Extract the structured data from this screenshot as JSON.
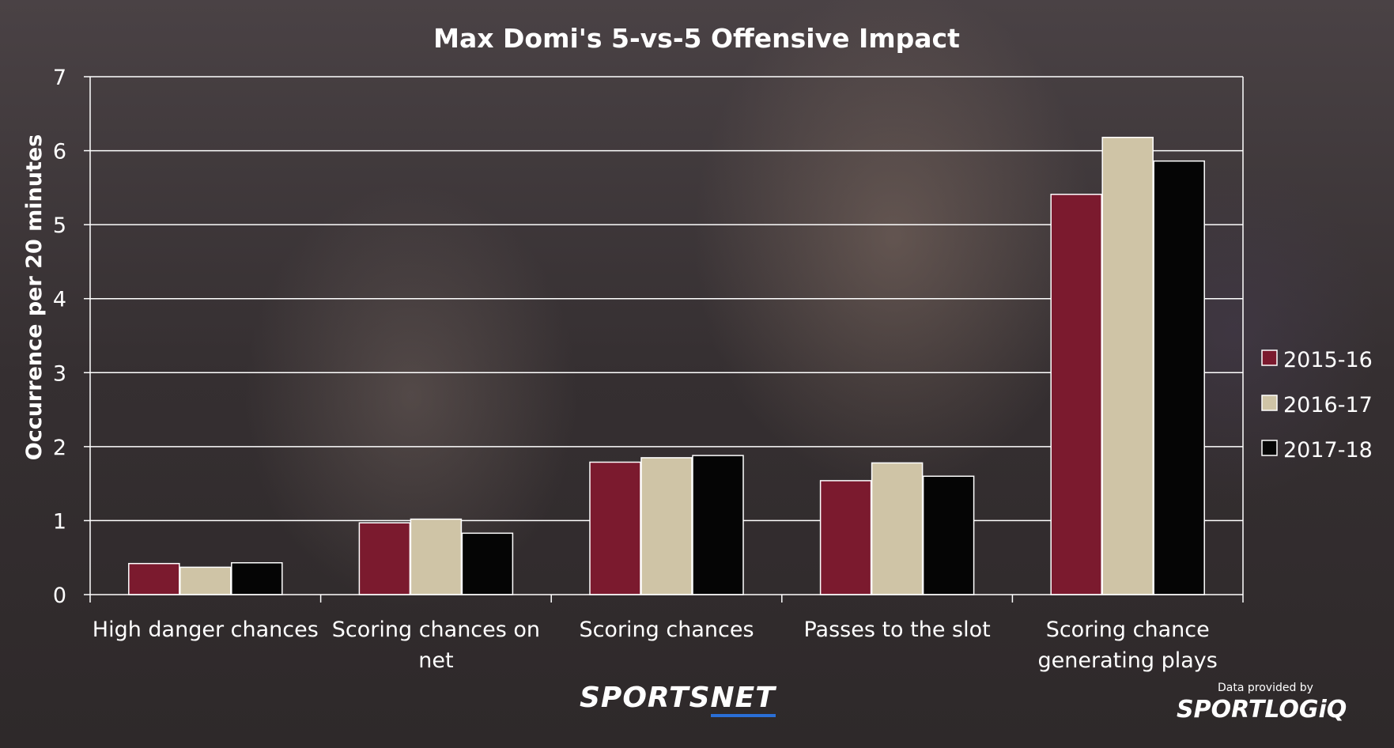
{
  "chart_data": {
    "type": "bar",
    "title": "Max Domi's 5-vs-5 Offensive Impact",
    "xlabel": "",
    "ylabel": "Occurrence per 20 minutes",
    "ylim": [
      0,
      7
    ],
    "yticks": [
      "0",
      "1",
      "2",
      "3",
      "4",
      "5",
      "6",
      "7"
    ],
    "grid": true,
    "legend_position": "right",
    "categories": [
      "High danger chances",
      "Scoring chances on net",
      "Scoring chances",
      "Passes to the slot",
      "Scoring chance generating plays"
    ],
    "category_lines": [
      [
        "High danger chances"
      ],
      [
        "Scoring chances on",
        "net"
      ],
      [
        "Scoring chances"
      ],
      [
        "Passes to the slot"
      ],
      [
        "Scoring chance",
        "generating plays"
      ]
    ],
    "series": [
      {
        "name": "2015-16",
        "color": "#7b1a2e",
        "values": [
          0.42,
          0.97,
          1.79,
          1.54,
          5.41
        ]
      },
      {
        "name": "2016-17",
        "color": "#cfc4a6",
        "values": [
          0.37,
          1.02,
          1.85,
          1.78,
          6.18
        ]
      },
      {
        "name": "2017-18",
        "color": "#050505",
        "values": [
          0.43,
          0.83,
          1.88,
          1.6,
          5.86
        ]
      }
    ]
  },
  "branding": {
    "sportsnet_a": "SPORTS",
    "sportsnet_b": "NET",
    "credit": "Data provided by",
    "sportlogiq": "SPORTLOGiQ"
  }
}
